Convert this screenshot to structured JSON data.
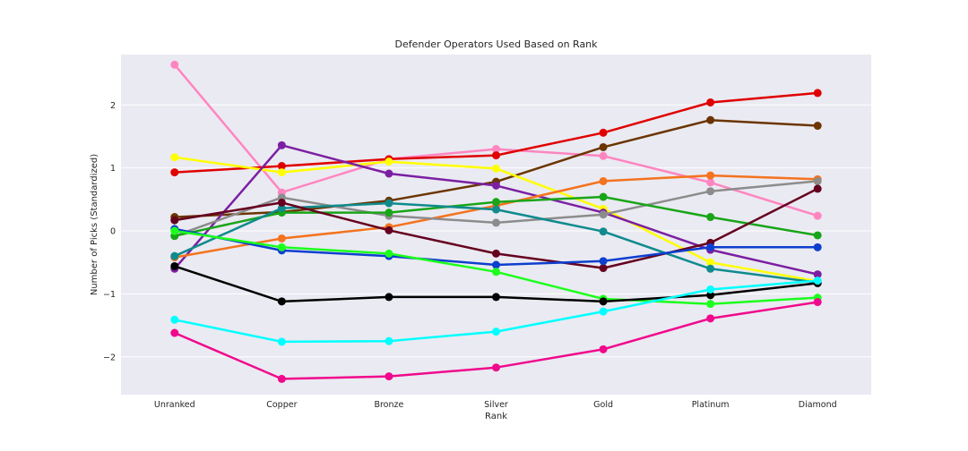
{
  "chart_data": {
    "type": "line",
    "title": "Defender Operators Used Based on Rank",
    "xlabel": "Rank",
    "ylabel": "Number of Picks (Standardized)",
    "categories": [
      "Unranked",
      "Copper",
      "Bronze",
      "Silver",
      "Gold",
      "Platinum",
      "Diamond"
    ],
    "ylim": [
      -2.6,
      2.8
    ],
    "yticks": [
      -2,
      -1,
      0,
      1,
      2
    ],
    "ytick_labels": [
      "−2",
      "−1",
      "0",
      "1",
      "2"
    ],
    "grid": true,
    "background": "#eaeaf2",
    "series": [
      {
        "color": "#ff85c0",
        "values": [
          2.64,
          0.61,
          1.14,
          1.3,
          1.19,
          0.77,
          0.24
        ]
      },
      {
        "color": "#e00000",
        "values": [
          0.93,
          1.03,
          1.14,
          1.2,
          1.56,
          2.04,
          2.19
        ]
      },
      {
        "color": "#6b3500",
        "values": [
          0.22,
          0.3,
          0.48,
          0.78,
          1.33,
          1.76,
          1.67
        ]
      },
      {
        "color": "#ffff00",
        "values": [
          1.17,
          0.93,
          1.1,
          0.99,
          0.35,
          -0.5,
          -0.8
        ]
      },
      {
        "color": "#7b1fa2",
        "values": [
          -0.6,
          1.36,
          0.91,
          0.72,
          0.29,
          -0.3,
          -0.69
        ]
      },
      {
        "color": "#f4731e",
        "values": [
          -0.42,
          -0.12,
          0.06,
          0.4,
          0.79,
          0.88,
          0.82
        ]
      },
      {
        "color": "#8c8c8c",
        "values": [
          -0.08,
          0.53,
          0.24,
          0.13,
          0.26,
          0.63,
          0.79
        ]
      },
      {
        "color": "#19a519",
        "values": [
          -0.08,
          0.29,
          0.29,
          0.46,
          0.54,
          0.22,
          -0.07
        ]
      },
      {
        "color": "#0f8b8d",
        "values": [
          -0.4,
          0.36,
          0.44,
          0.34,
          -0.01,
          -0.6,
          -0.82
        ]
      },
      {
        "color": "#66001f",
        "values": [
          0.17,
          0.45,
          0.01,
          -0.36,
          -0.59,
          -0.19,
          0.67
        ]
      },
      {
        "color": "#0d3fcf",
        "values": [
          0.03,
          -0.31,
          -0.4,
          -0.54,
          -0.48,
          -0.26,
          -0.26
        ]
      },
      {
        "color": "#1cff1c",
        "values": [
          0.0,
          -0.26,
          -0.36,
          -0.65,
          -1.08,
          -1.16,
          -1.06
        ]
      },
      {
        "color": "#000000",
        "values": [
          -0.56,
          -1.12,
          -1.05,
          -1.05,
          -1.12,
          -1.02,
          -0.83
        ]
      },
      {
        "color": "#00ffff",
        "values": [
          -1.41,
          -1.76,
          -1.75,
          -1.6,
          -1.28,
          -0.93,
          -0.79
        ]
      },
      {
        "color": "#f0098c",
        "values": [
          -1.62,
          -2.35,
          -2.31,
          -2.17,
          -1.88,
          -1.39,
          -1.13
        ]
      }
    ]
  }
}
